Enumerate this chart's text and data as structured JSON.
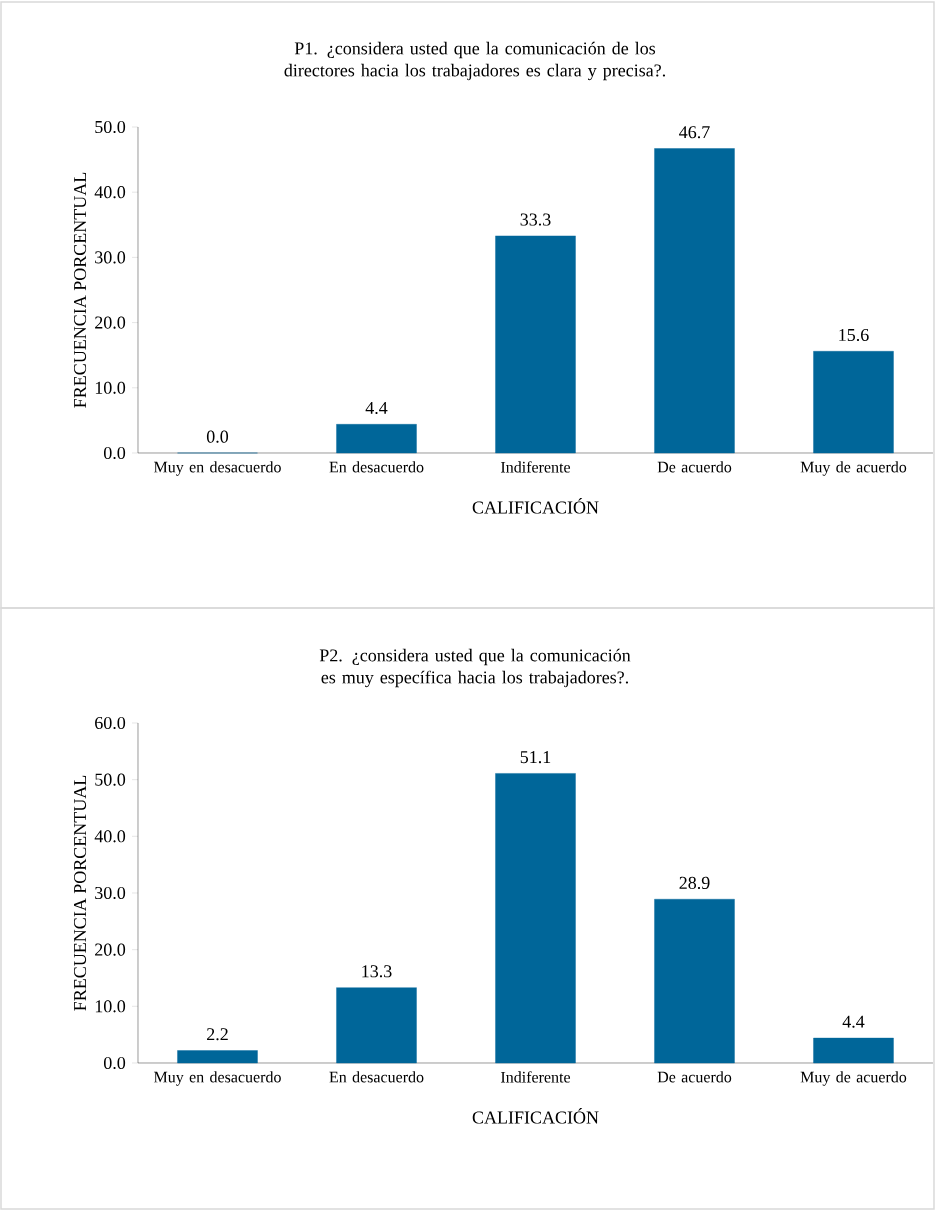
{
  "chart_data": [
    {
      "type": "bar",
      "title": "P1. ¿considera usted que la comunicación de los directores hacia los trabajadores es clara y precisa?.",
      "xlabel": "CALIFICACIÓN",
      "ylabel": "FRECUENCIA PORCENTUAL",
      "categories": [
        "Muy en desacuerdo",
        "En desacuerdo",
        "Indiferente",
        "De acuerdo",
        "Muy de acuerdo"
      ],
      "values": [
        0.0,
        4.4,
        33.3,
        46.7,
        15.6
      ],
      "value_labels": [
        "0.0",
        "4.4",
        "33.3",
        "46.7",
        "15.6"
      ],
      "color": "#006699",
      "ylim": [
        0,
        50
      ],
      "yticks": [
        {
          "value": 0,
          "label": "0.0"
        },
        {
          "value": 10,
          "label": "10.0"
        },
        {
          "value": 20,
          "label": "20.0"
        },
        {
          "value": 30,
          "label": "30.0"
        },
        {
          "value": 40,
          "label": "40.0"
        },
        {
          "value": 50,
          "label": "50.0"
        }
      ]
    },
    {
      "type": "bar",
      "title": "P2. ¿considera usted que la comunicación es muy específica hacia los trabajadores?.",
      "xlabel": "CALIFICACIÓN",
      "ylabel": "FRECUENCIA PORCENTUAL",
      "categories": [
        "Muy en desacuerdo",
        "En desacuerdo",
        "Indiferente",
        "De acuerdo",
        "Muy de acuerdo"
      ],
      "values": [
        2.2,
        13.3,
        51.1,
        28.9,
        4.4
      ],
      "value_labels": [
        "2.2",
        "13.3",
        "51.1",
        "28.9",
        "4.4"
      ],
      "color": "#006699",
      "ylim": [
        0,
        60
      ],
      "yticks": [
        {
          "value": 0,
          "label": "0.0"
        },
        {
          "value": 10,
          "label": "10.0"
        },
        {
          "value": 20,
          "label": "20.0"
        },
        {
          "value": 30,
          "label": "30.0"
        },
        {
          "value": 40,
          "label": "40.0"
        },
        {
          "value": 50,
          "label": "50.0"
        },
        {
          "value": 60,
          "label": "60.0"
        }
      ]
    }
  ]
}
